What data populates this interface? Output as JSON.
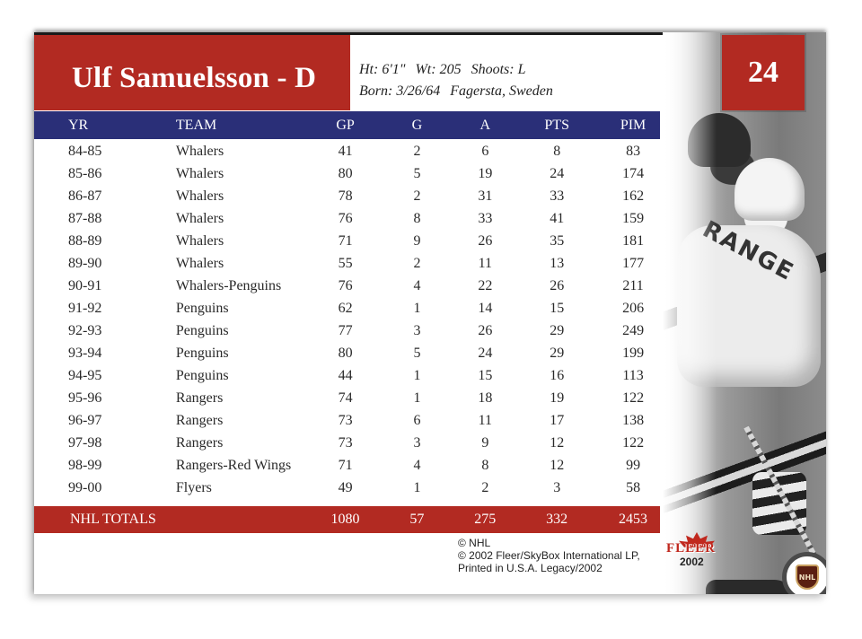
{
  "card": {
    "player_name": "Ulf Samuelsson - D",
    "number": "24",
    "bio": {
      "height": "Ht: 6'1\"",
      "weight": "Wt: 205",
      "shoots": "Shoots: L",
      "born": "Born: 3/26/64",
      "birthplace": "Fagersta, Sweden"
    },
    "colors": {
      "accent_red": "#b22a22",
      "header_navy": "#2a2f78"
    }
  },
  "stats": {
    "headers": [
      "YR",
      "TEAM",
      "GP",
      "G",
      "A",
      "PTS",
      "PIM"
    ],
    "rows": [
      [
        "84-85",
        "Whalers",
        "41",
        "2",
        "6",
        "8",
        "83"
      ],
      [
        "85-86",
        "Whalers",
        "80",
        "5",
        "19",
        "24",
        "174"
      ],
      [
        "86-87",
        "Whalers",
        "78",
        "2",
        "31",
        "33",
        "162"
      ],
      [
        "87-88",
        "Whalers",
        "76",
        "8",
        "33",
        "41",
        "159"
      ],
      [
        "88-89",
        "Whalers",
        "71",
        "9",
        "26",
        "35",
        "181"
      ],
      [
        "89-90",
        "Whalers",
        "55",
        "2",
        "11",
        "13",
        "177"
      ],
      [
        "90-91",
        "Whalers-Penguins",
        "76",
        "4",
        "22",
        "26",
        "211"
      ],
      [
        "91-92",
        "Penguins",
        "62",
        "1",
        "14",
        "15",
        "206"
      ],
      [
        "92-93",
        "Penguins",
        "77",
        "3",
        "26",
        "29",
        "249"
      ],
      [
        "93-94",
        "Penguins",
        "80",
        "5",
        "24",
        "29",
        "199"
      ],
      [
        "94-95",
        "Penguins",
        "44",
        "1",
        "15",
        "16",
        "113"
      ],
      [
        "95-96",
        "Rangers",
        "74",
        "1",
        "18",
        "19",
        "122"
      ],
      [
        "96-97",
        "Rangers",
        "73",
        "6",
        "11",
        "17",
        "138"
      ],
      [
        "97-98",
        "Rangers",
        "73",
        "3",
        "9",
        "12",
        "122"
      ],
      [
        "98-99",
        "Rangers-Red Wings",
        "71",
        "4",
        "8",
        "12",
        "99"
      ],
      [
        "99-00",
        "Flyers",
        "49",
        "1",
        "2",
        "3",
        "58"
      ]
    ],
    "totals": {
      "label": "NHL TOTALS",
      "gp": "1080",
      "g": "57",
      "a": "275",
      "pts": "332",
      "pim": "2453"
    }
  },
  "legal": {
    "line1": "© NHL",
    "line2": "© 2002 Fleer/SkyBox International LP,",
    "line3": "Printed in U.S.A. Legacy/2002"
  },
  "logos": {
    "fleer_word": "FLEER",
    "fleer_year": "2002",
    "nhl_shield": "NHL",
    "jersey_letters": "RANGE"
  }
}
